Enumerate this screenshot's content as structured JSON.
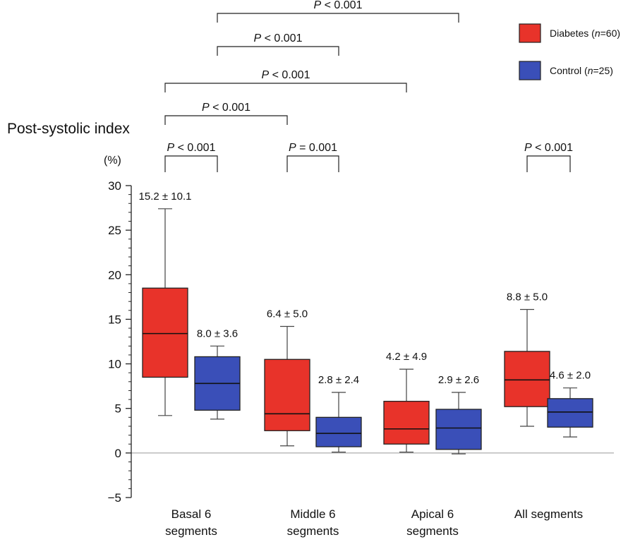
{
  "chart_data": {
    "type": "boxplot",
    "title": "Post-systolic index",
    "ylabel": "(%)",
    "ylim": [
      -5,
      30
    ],
    "yticks": [
      -5,
      0,
      5,
      10,
      15,
      20,
      25,
      30
    ],
    "minor_tick_step": 1,
    "zero_line": true,
    "legend_position": "top-right",
    "categories": [
      {
        "line1": "Basal 6",
        "line2": "segments"
      },
      {
        "line1": "Middle 6",
        "line2": "segments"
      },
      {
        "line1": "Apical 6",
        "line2": "segments"
      },
      {
        "line1": "All segments",
        "line2": ""
      }
    ],
    "series": [
      {
        "name": "Diabetes",
        "legend_label": "Diabetes (n=60)",
        "color": "#e8332a",
        "boxes": [
          {
            "min": 4.2,
            "q1": 8.5,
            "median": 13.4,
            "q3": 18.5,
            "max": 27.4,
            "label": "15.2 ± 10.1"
          },
          {
            "min": 0.8,
            "q1": 2.5,
            "median": 4.4,
            "q3": 10.5,
            "max": 14.2,
            "label": "6.4 ± 5.0"
          },
          {
            "min": 0.1,
            "q1": 1.0,
            "median": 2.7,
            "q3": 5.8,
            "max": 9.4,
            "label": "4.2 ± 4.9"
          },
          {
            "min": 3.0,
            "q1": 5.2,
            "median": 8.2,
            "q3": 11.4,
            "max": 16.1,
            "label": "8.8 ± 5.0"
          }
        ]
      },
      {
        "name": "Control",
        "legend_label": "Control (n=25)",
        "color": "#3a4fb8",
        "boxes": [
          {
            "min": 3.8,
            "q1": 4.8,
            "median": 7.8,
            "q3": 10.8,
            "max": 12.0,
            "label": "8.0 ± 3.6"
          },
          {
            "min": 0.1,
            "q1": 0.7,
            "median": 2.2,
            "q3": 4.0,
            "max": 6.8,
            "label": "2.8 ± 2.4"
          },
          {
            "min": -0.1,
            "q1": 0.4,
            "median": 2.8,
            "q3": 4.9,
            "max": 6.8,
            "label": "2.9 ± 2.6"
          },
          {
            "min": 1.8,
            "q1": 2.9,
            "median": 4.6,
            "q3": 6.1,
            "max": 7.3,
            "label": "4.6 ± 2.0"
          }
        ]
      }
    ],
    "comparisons": [
      {
        "label": "P < 0.001",
        "from": [
          0,
          0
        ],
        "to": [
          0,
          1
        ]
      },
      {
        "label": "P = 0.001",
        "from": [
          1,
          0
        ],
        "to": [
          1,
          1
        ]
      },
      {
        "label": "P < 0.001",
        "from": [
          3,
          0
        ],
        "to": [
          3,
          1
        ]
      },
      {
        "label": "P < 0.001",
        "from": [
          0,
          0
        ],
        "to": [
          1,
          0
        ]
      },
      {
        "label": "P < 0.001",
        "from": [
          0,
          0
        ],
        "to": [
          2,
          0
        ]
      },
      {
        "label": "P < 0.001",
        "from": [
          0,
          1
        ],
        "to": [
          1,
          1
        ]
      },
      {
        "label": "P < 0.001",
        "from": [
          0,
          1
        ],
        "to": [
          2,
          1
        ]
      }
    ]
  }
}
